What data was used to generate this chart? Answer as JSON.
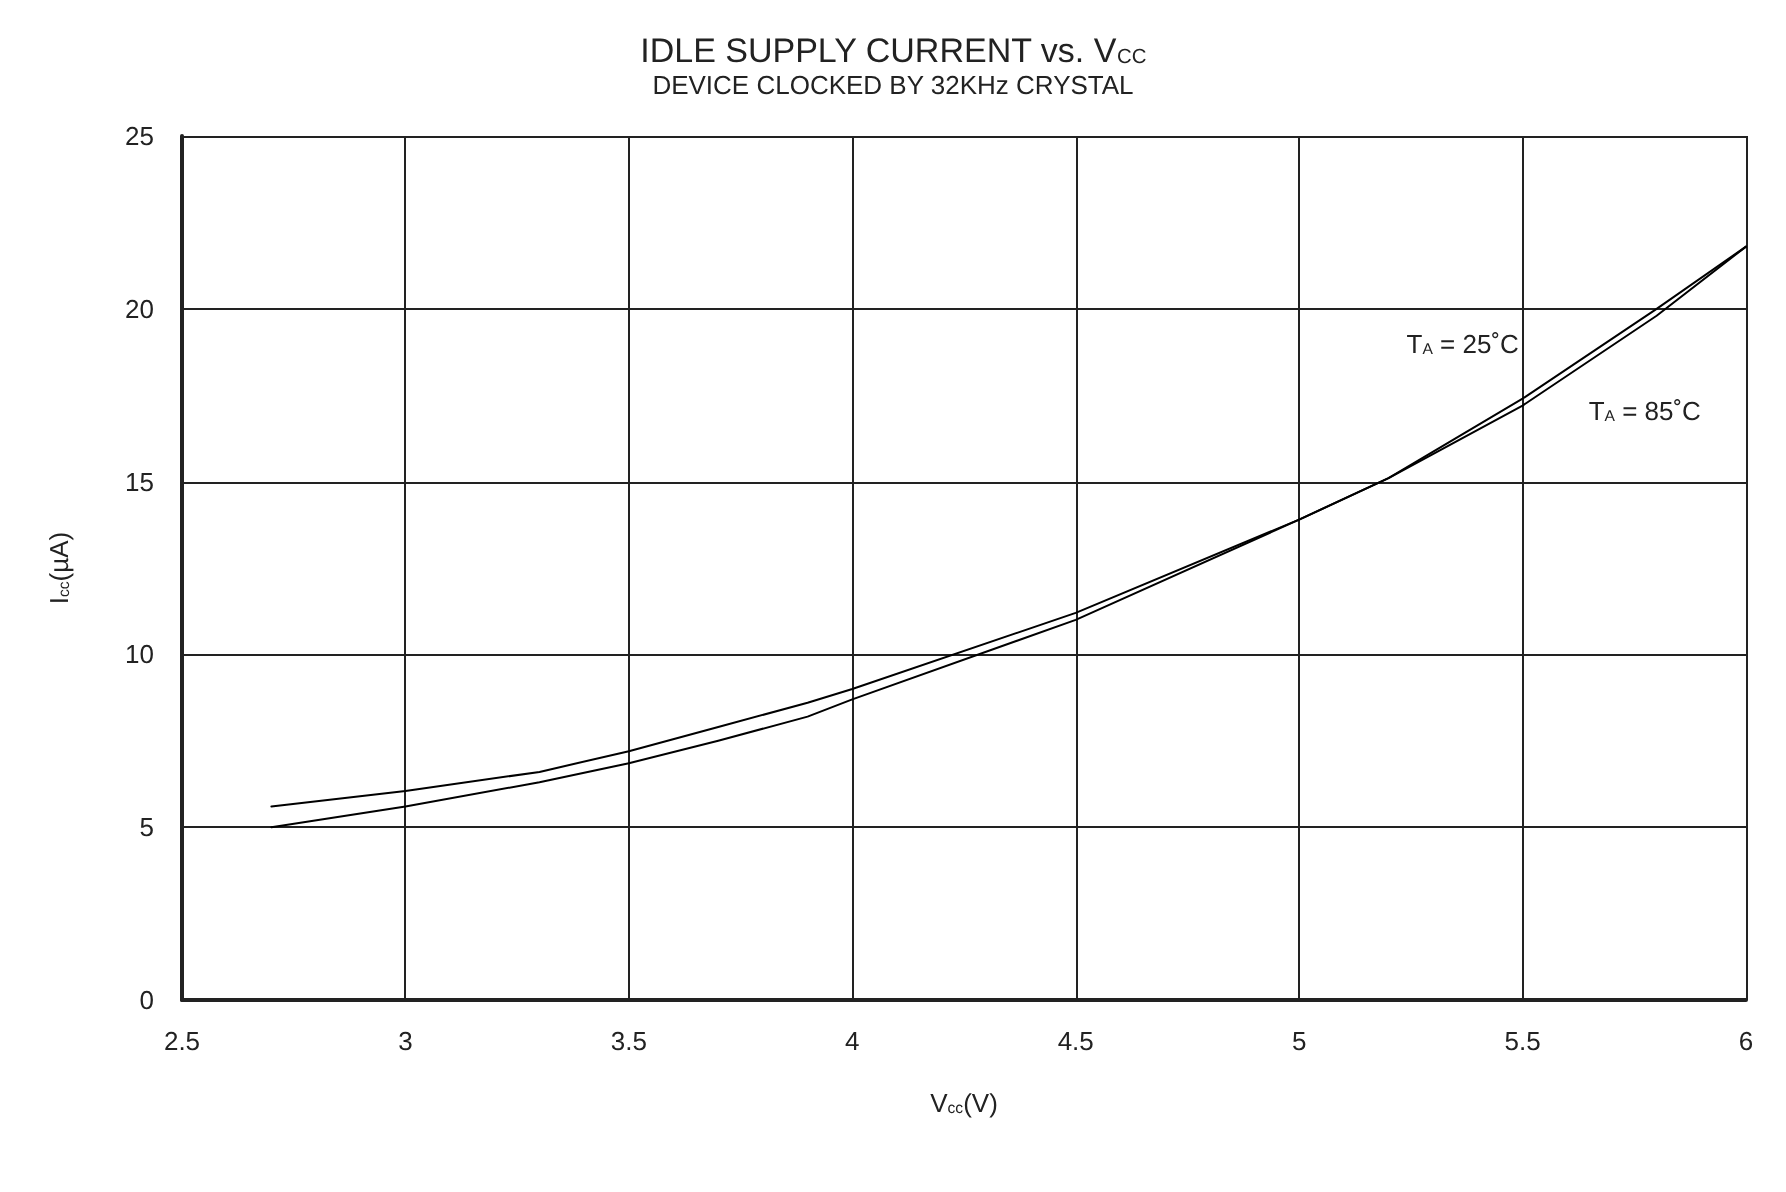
{
  "chart_data": {
    "type": "line",
    "title": "IDLE SUPPLY CURRENT vs. V$_{CC}$",
    "subtitle": "DEVICE CLOCKED BY 32KHz CRYSTAL",
    "xlabel": "V$_{cc}$(V)",
    "ylabel": "I$_{cc}$(µA)",
    "x": [
      2.7,
      3.0,
      3.3,
      3.5,
      3.7,
      3.9,
      4.0,
      4.5,
      5.0,
      5.2,
      5.5,
      5.8,
      6.0
    ],
    "series": [
      {
        "name": "T$_{A}$ = 25˚C",
        "color": "#000000",
        "values": [
          5.6,
          6.05,
          6.6,
          7.2,
          7.9,
          8.6,
          9.0,
          11.2,
          13.9,
          15.1,
          17.4,
          20.0,
          21.8
        ]
      },
      {
        "name": "T$_{A}$ = 85˚C",
        "color": "#000000",
        "values": [
          5.0,
          5.6,
          6.3,
          6.85,
          7.5,
          8.2,
          8.7,
          11.0,
          13.9,
          15.1,
          17.2,
          19.8,
          21.8
        ]
      }
    ],
    "xlim": [
      2.5,
      6
    ],
    "xticks": [
      2.5,
      3,
      3.5,
      4,
      4.5,
      5,
      5.5,
      6
    ],
    "ylim": [
      0,
      25
    ],
    "yticks": [
      0,
      5,
      10,
      15,
      20,
      25
    ],
    "grid": true,
    "legend": false,
    "marker": "none",
    "line_style": "solid"
  }
}
